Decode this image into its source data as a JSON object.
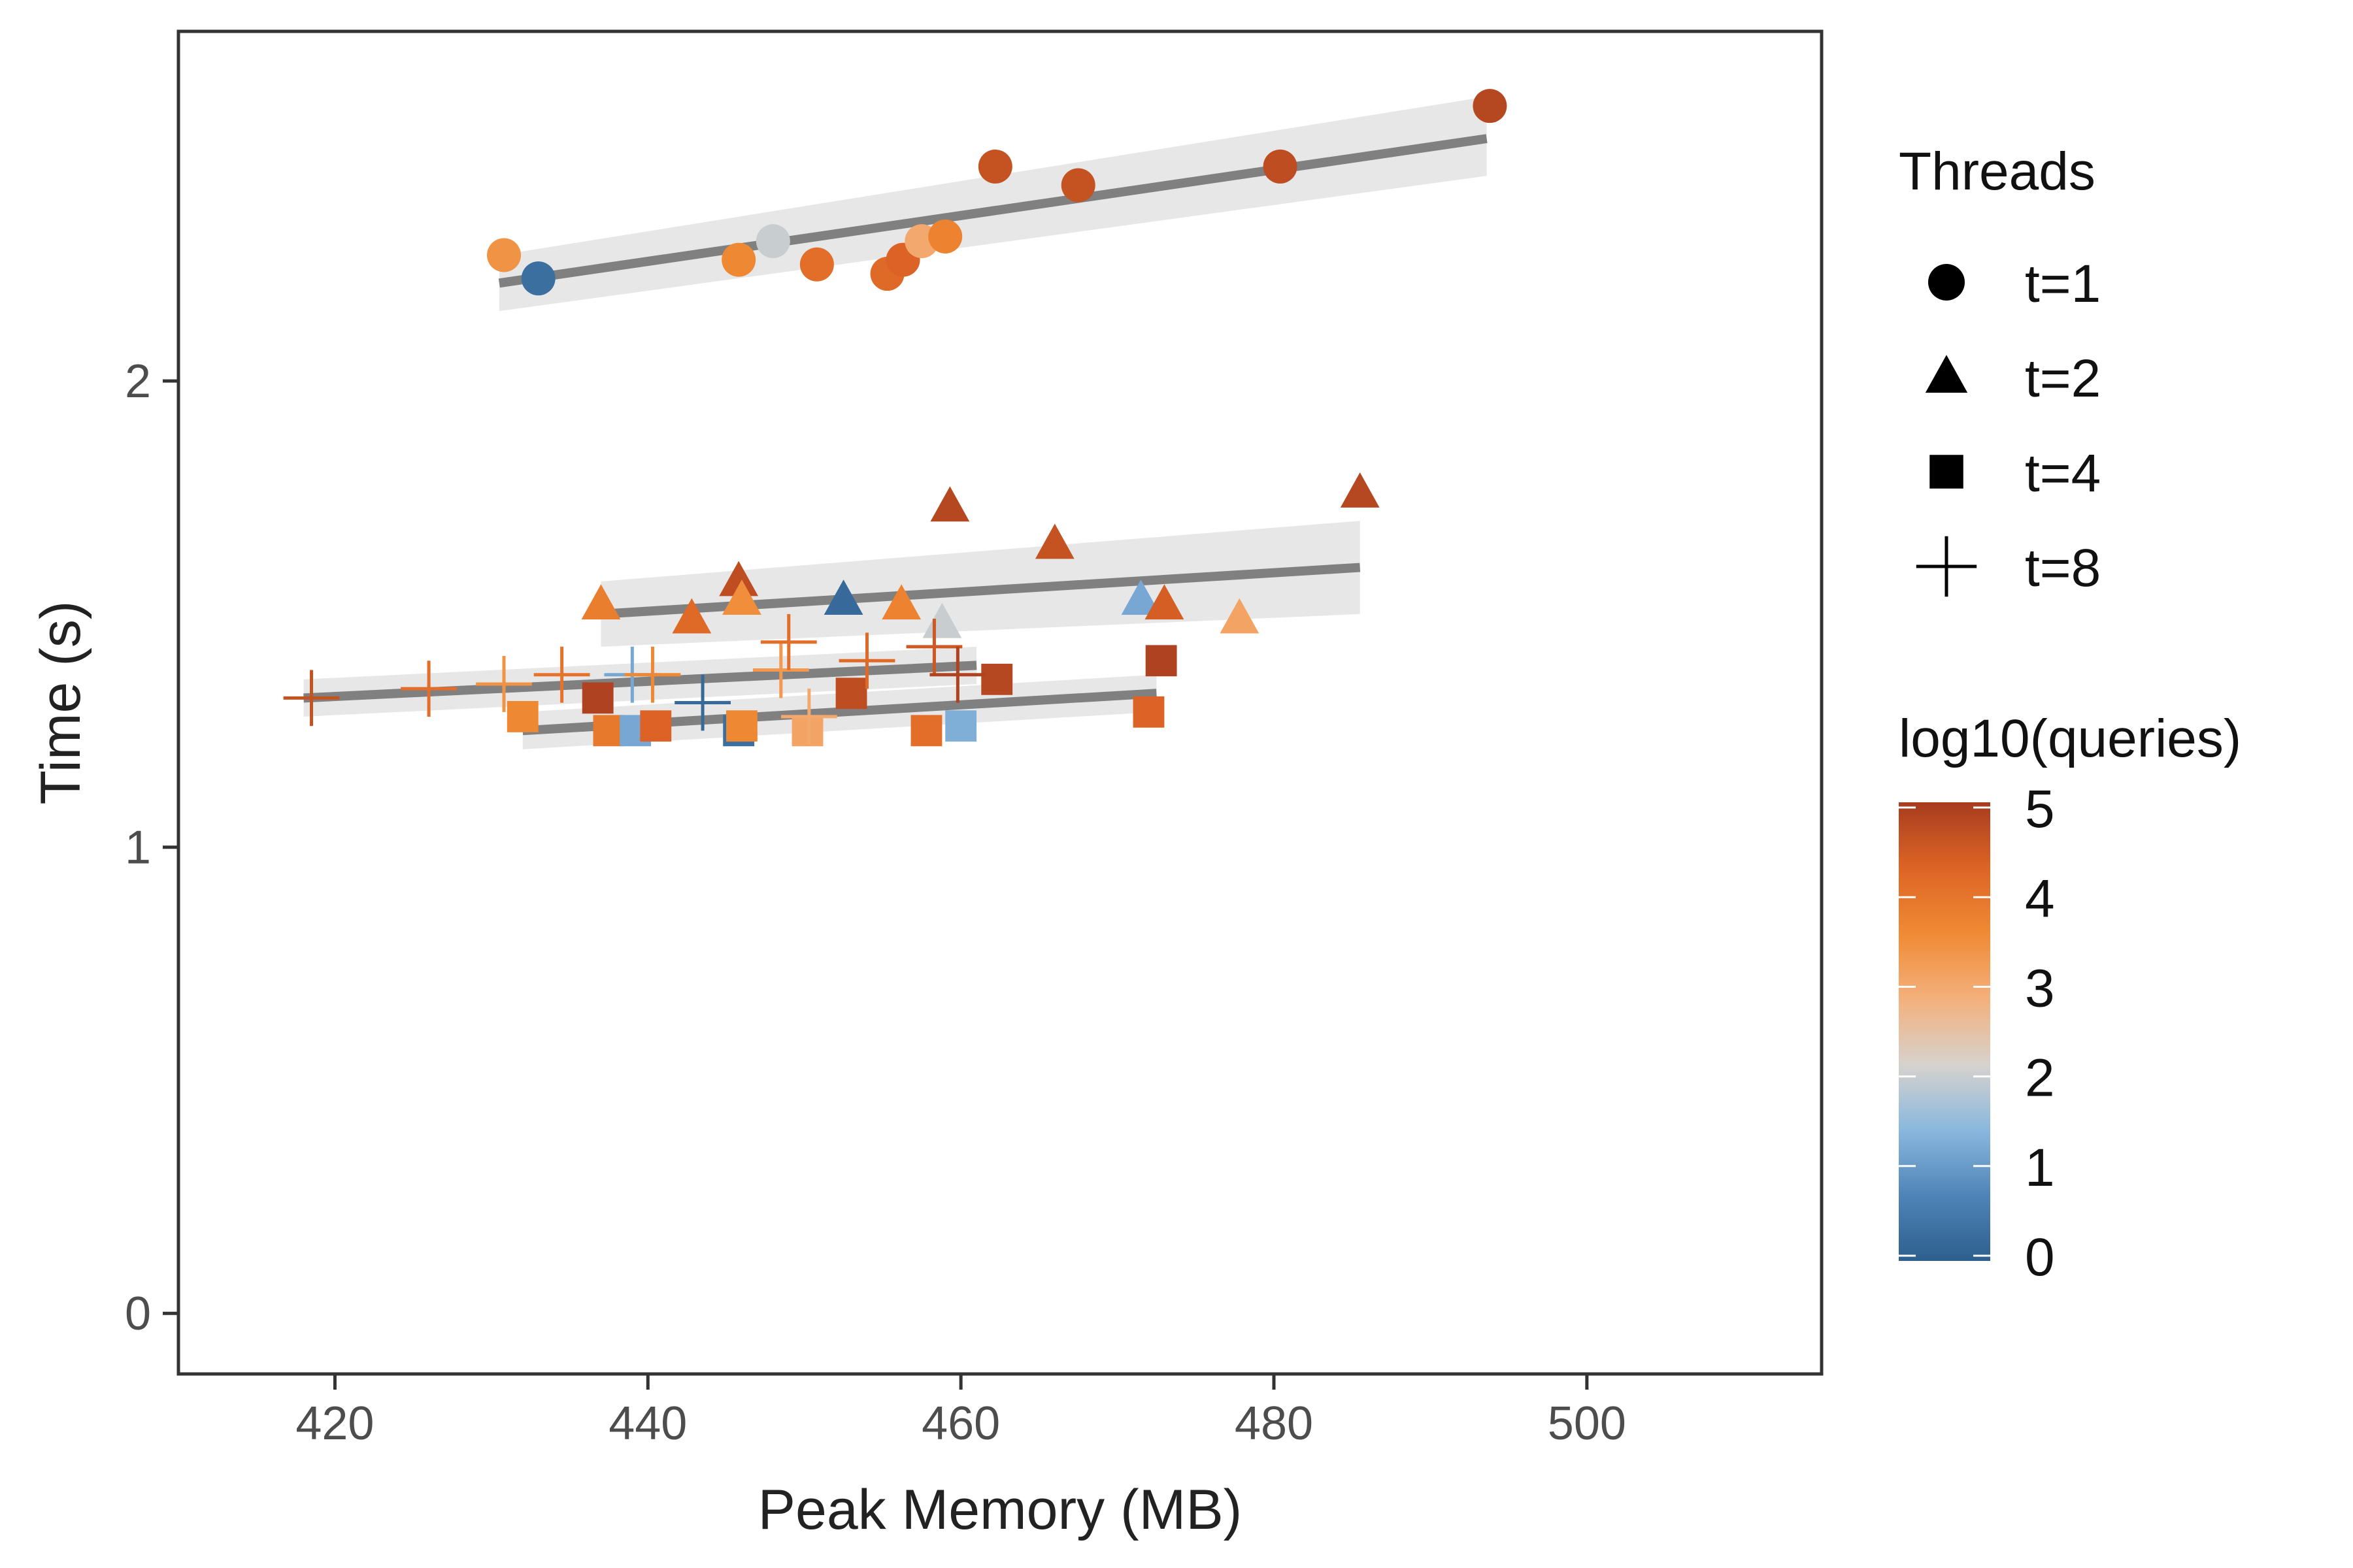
{
  "chart_data": {
    "type": "scatter",
    "xlabel": "Peak Memory (MB)",
    "ylabel": "Time (s)",
    "xlim": [
      410,
      515
    ],
    "ylim": [
      -0.13,
      2.75
    ],
    "xticks": [
      420,
      440,
      460,
      480,
      500
    ],
    "yticks": [
      0,
      1,
      2
    ],
    "grid": false,
    "legend": {
      "shape_title": "Threads",
      "shapes": [
        {
          "label": "t=1",
          "shape": "circle"
        },
        {
          "label": "t=2",
          "shape": "triangle"
        },
        {
          "label": "t=4",
          "shape": "square"
        },
        {
          "label": "t=8",
          "shape": "plus"
        }
      ],
      "color_title": "log10(queries)",
      "color_ticks": [
        0,
        1,
        2,
        3,
        4,
        5
      ],
      "color_stops": [
        "#2d5f8e",
        "#4f84b8",
        "#8ab8de",
        "#d7d2cd",
        "#f4b07c",
        "#f08a34",
        "#dd6425",
        "#a73d1f"
      ],
      "placement": "right"
    },
    "trend_color": "#808080",
    "band_color": "#e3e3e3",
    "series": [
      {
        "name": "t=1",
        "shape": "circle",
        "fit": {
          "x": [
            430.5,
            493.6
          ],
          "y": [
            2.21,
            2.52
          ],
          "band_lo": [
            2.15,
            2.44
          ],
          "band_hi": [
            2.27,
            2.61
          ]
        },
        "points": [
          {
            "x": 430.8,
            "y": 2.27,
            "q": 3.4
          },
          {
            "x": 433.0,
            "y": 2.22,
            "q": 0.3
          },
          {
            "x": 445.8,
            "y": 2.26,
            "q": 3.6
          },
          {
            "x": 448.0,
            "y": 2.3,
            "q": 2.0
          },
          {
            "x": 450.8,
            "y": 2.25,
            "q": 4.1
          },
          {
            "x": 455.3,
            "y": 2.23,
            "q": 4.2
          },
          {
            "x": 456.3,
            "y": 2.26,
            "q": 4.3
          },
          {
            "x": 457.5,
            "y": 2.3,
            "q": 3.0
          },
          {
            "x": 459.0,
            "y": 2.31,
            "q": 3.7
          },
          {
            "x": 462.2,
            "y": 2.46,
            "q": 4.6
          },
          {
            "x": 467.5,
            "y": 2.42,
            "q": 4.6
          },
          {
            "x": 480.4,
            "y": 2.46,
            "q": 4.7
          },
          {
            "x": 493.8,
            "y": 2.59,
            "q": 4.8
          }
        ]
      },
      {
        "name": "t=2",
        "shape": "triangle",
        "fit": {
          "x": [
            437.0,
            485.5
          ],
          "y": [
            1.5,
            1.6
          ],
          "band_lo": [
            1.43,
            1.5
          ],
          "band_hi": [
            1.57,
            1.7
          ]
        },
        "points": [
          {
            "x": 437.0,
            "y": 1.52,
            "q": 3.8
          },
          {
            "x": 442.8,
            "y": 1.49,
            "q": 4.2
          },
          {
            "x": 445.8,
            "y": 1.57,
            "q": 4.7
          },
          {
            "x": 446.0,
            "y": 1.53,
            "q": 3.5
          },
          {
            "x": 452.5,
            "y": 1.53,
            "q": 0.2
          },
          {
            "x": 456.2,
            "y": 1.52,
            "q": 3.7
          },
          {
            "x": 458.8,
            "y": 1.48,
            "q": 2.0
          },
          {
            "x": 459.3,
            "y": 1.73,
            "q": 4.8
          },
          {
            "x": 466.0,
            "y": 1.65,
            "q": 4.6
          },
          {
            "x": 471.5,
            "y": 1.53,
            "q": 1.2
          },
          {
            "x": 473.0,
            "y": 1.52,
            "q": 4.4
          },
          {
            "x": 477.8,
            "y": 1.49,
            "q": 3.1
          },
          {
            "x": 485.5,
            "y": 1.76,
            "q": 4.8
          }
        ]
      },
      {
        "name": "t=4",
        "shape": "square",
        "fit": {
          "x": [
            432.0,
            472.5
          ],
          "y": [
            1.25,
            1.33
          ],
          "band_lo": [
            1.21,
            1.29
          ],
          "band_hi": [
            1.29,
            1.37
          ]
        },
        "points": [
          {
            "x": 432.0,
            "y": 1.28,
            "q": 3.6
          },
          {
            "x": 436.8,
            "y": 1.32,
            "q": 4.9
          },
          {
            "x": 437.5,
            "y": 1.25,
            "q": 3.9
          },
          {
            "x": 439.2,
            "y": 1.25,
            "q": 1.2
          },
          {
            "x": 440.5,
            "y": 1.26,
            "q": 4.3
          },
          {
            "x": 445.8,
            "y": 1.25,
            "q": 0.3
          },
          {
            "x": 446.0,
            "y": 1.26,
            "q": 3.6
          },
          {
            "x": 450.2,
            "y": 1.25,
            "q": 3.1
          },
          {
            "x": 453.0,
            "y": 1.33,
            "q": 4.7
          },
          {
            "x": 457.8,
            "y": 1.25,
            "q": 4.1
          },
          {
            "x": 460.0,
            "y": 1.26,
            "q": 1.3
          },
          {
            "x": 462.3,
            "y": 1.36,
            "q": 4.8
          },
          {
            "x": 472.0,
            "y": 1.29,
            "q": 4.3
          },
          {
            "x": 472.8,
            "y": 1.4,
            "q": 4.9
          }
        ]
      },
      {
        "name": "t=8",
        "shape": "plus",
        "fit": {
          "x": [
            418.0,
            461.0
          ],
          "y": [
            1.32,
            1.39
          ],
          "band_lo": [
            1.28,
            1.35
          ],
          "band_hi": [
            1.36,
            1.43
          ]
        },
        "points": [
          {
            "x": 418.5,
            "y": 1.32,
            "q": 4.6
          },
          {
            "x": 426.0,
            "y": 1.34,
            "q": 4.1
          },
          {
            "x": 430.8,
            "y": 1.35,
            "q": 3.4
          },
          {
            "x": 434.5,
            "y": 1.37,
            "q": 4.0
          },
          {
            "x": 439.0,
            "y": 1.37,
            "q": 1.2
          },
          {
            "x": 440.3,
            "y": 1.37,
            "q": 3.6
          },
          {
            "x": 443.5,
            "y": 1.31,
            "q": 0.2
          },
          {
            "x": 448.5,
            "y": 1.38,
            "q": 3.3
          },
          {
            "x": 449.0,
            "y": 1.44,
            "q": 4.1
          },
          {
            "x": 450.3,
            "y": 1.28,
            "q": 3.0
          },
          {
            "x": 454.0,
            "y": 1.4,
            "q": 4.2
          },
          {
            "x": 458.3,
            "y": 1.43,
            "q": 4.5
          },
          {
            "x": 459.8,
            "y": 1.37,
            "q": 4.9
          }
        ]
      }
    ]
  }
}
